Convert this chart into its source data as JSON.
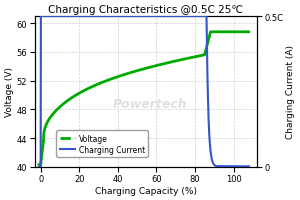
{
  "title": "Charging Characteristics @0.5C 25℃",
  "xlabel": "Charging Capacity (%)",
  "ylabel_left": "Voltage (V)",
  "ylabel_right": "Charging Current (A)",
  "xlim": [
    -3,
    112
  ],
  "ylim_left": [
    40.0,
    61.0
  ],
  "xticks": [
    0,
    20,
    40,
    60,
    80,
    100
  ],
  "yticks_left": [
    40.0,
    44.0,
    48.0,
    52.0,
    56.0,
    60.0
  ],
  "voltage_color": "#00aa00",
  "current_color": "#3355cc",
  "grid_color": "#cccccc",
  "legend_labels": [
    "Voltage",
    "Charging Current"
  ],
  "watermark": "Powertech"
}
